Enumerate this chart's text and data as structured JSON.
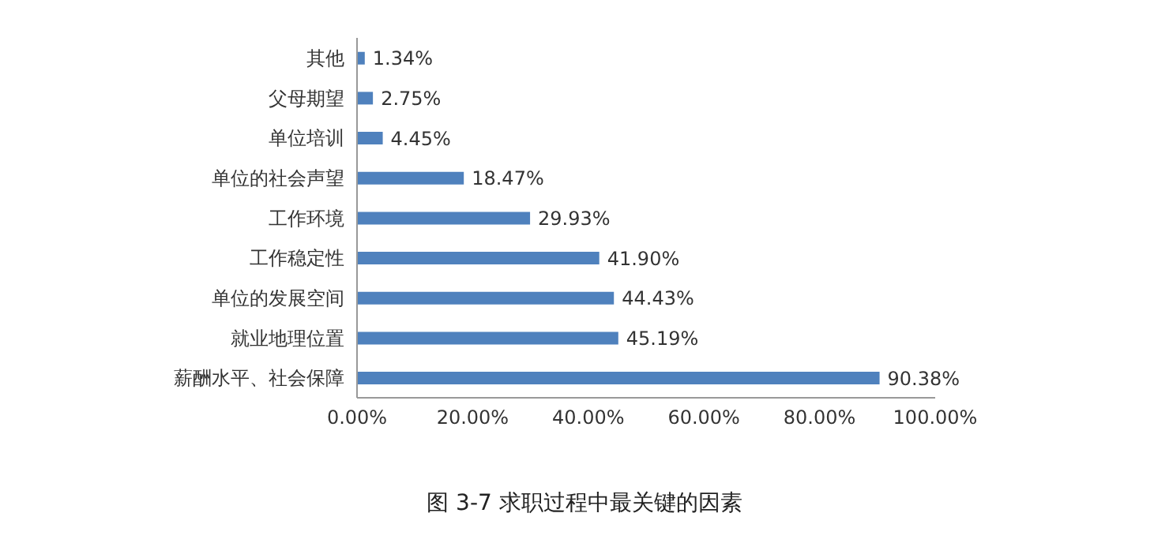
{
  "chart_data": {
    "type": "bar",
    "orientation": "horizontal",
    "categories": [
      "其他",
      "父母期望",
      "单位培训",
      "单位的社会声望",
      "工作环境",
      "工作稳定性",
      "单位的发展空间",
      "就业地理位置",
      "薪酬水平、社会保障"
    ],
    "values": [
      1.34,
      2.75,
      4.45,
      18.47,
      29.93,
      41.9,
      44.43,
      45.19,
      90.38
    ],
    "value_labels": [
      "1.34%",
      "2.75%",
      "4.45%",
      "18.47%",
      "29.93%",
      "41.90%",
      "44.43%",
      "45.19%",
      "90.38%"
    ],
    "color": "#4f81bd",
    "xlim": [
      0,
      100
    ],
    "xticks": [
      {
        "value": 0,
        "label": "0.00%"
      },
      {
        "value": 20,
        "label": "20.00%"
      },
      {
        "value": 40,
        "label": "40.00%"
      },
      {
        "value": 60,
        "label": "60.00%"
      },
      {
        "value": 80,
        "label": "80.00%"
      },
      {
        "value": 100,
        "label": "100.00%"
      }
    ],
    "grid": false,
    "annotations": [
      "图 3-7 求职过程中最关键的因素"
    ]
  }
}
